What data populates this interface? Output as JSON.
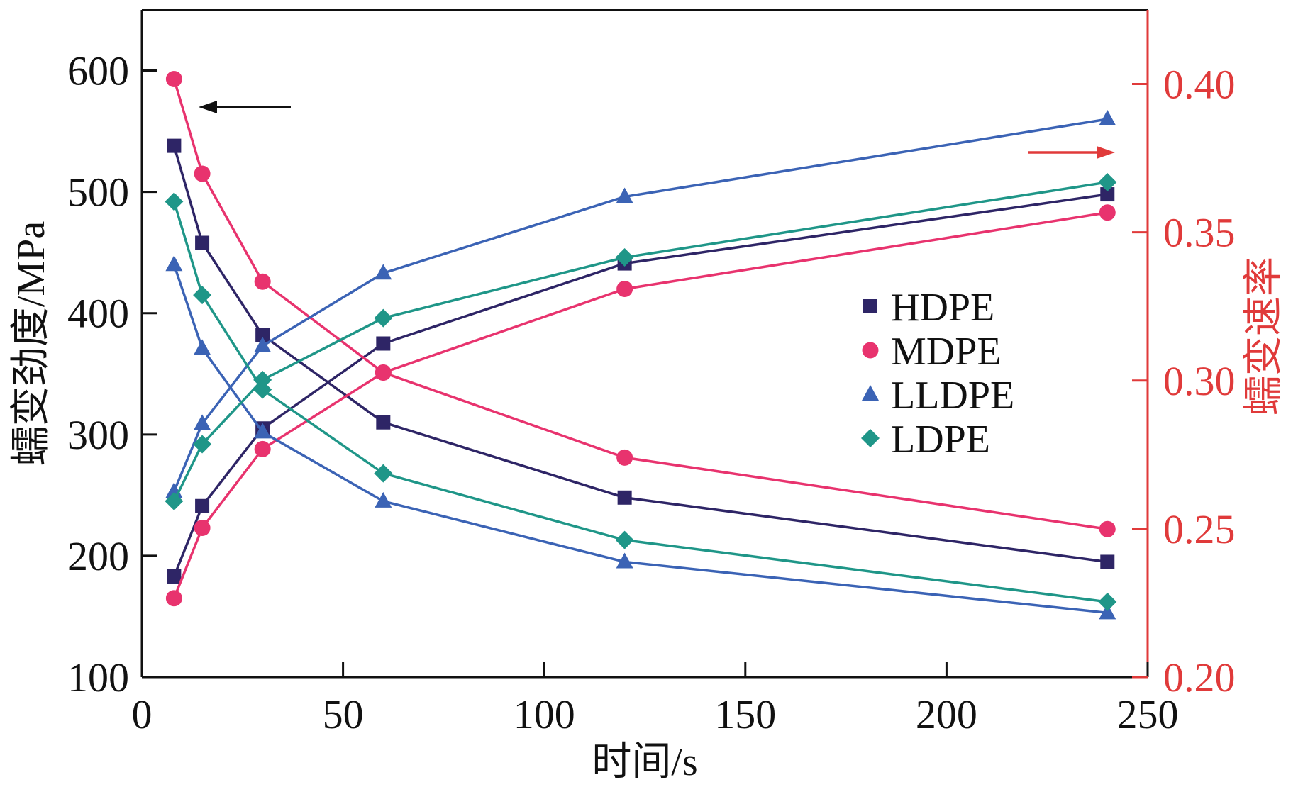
{
  "chart_data": {
    "type": "line",
    "title": "",
    "xlabel": "时间/s",
    "ylabel_left": "蠕变劲度/MPa",
    "ylabel_right": "蠕变速率",
    "xlim": [
      0,
      250
    ],
    "ylim_left": [
      100,
      650
    ],
    "ylim_right": [
      0.2,
      0.425
    ],
    "x_ticks": [
      0,
      50,
      100,
      150,
      200,
      250
    ],
    "y_left_ticks": [
      100,
      200,
      300,
      400,
      500,
      600
    ],
    "y_right_ticks": [
      "0.20",
      "0.25",
      "0.30",
      "0.35",
      "0.40"
    ],
    "y_right_tick_values": [
      0.2,
      0.25,
      0.3,
      0.35,
      0.4
    ],
    "x": [
      8,
      15,
      30,
      60,
      120,
      240
    ],
    "legend_position": "center-right",
    "series": [
      {
        "name": "HDPE",
        "marker": "square",
        "color": "#2e2566",
        "axis": "left",
        "role": "stiffness",
        "values": [
          538,
          458,
          382,
          310,
          248,
          195
        ]
      },
      {
        "name": "HDPE",
        "marker": "square",
        "color": "#2e2566",
        "axis": "left",
        "role": "rate",
        "values": [
          183,
          241,
          305,
          375,
          441,
          498
        ]
      },
      {
        "name": "MDPE",
        "marker": "circle",
        "color": "#e8336e",
        "axis": "left",
        "role": "stiffness",
        "values": [
          593,
          515,
          426,
          351,
          281,
          222
        ]
      },
      {
        "name": "MDPE",
        "marker": "circle",
        "color": "#e8336e",
        "axis": "left",
        "role": "rate",
        "values": [
          165,
          223,
          288,
          351,
          420,
          483
        ]
      },
      {
        "name": "LLDPE",
        "marker": "triangle",
        "color": "#3b63b5",
        "axis": "left",
        "role": "stiffness",
        "values": [
          440,
          371,
          302,
          245,
          195,
          153
        ]
      },
      {
        "name": "LLDPE",
        "marker": "triangle",
        "color": "#3b63b5",
        "axis": "left",
        "role": "rate",
        "values": [
          253,
          309,
          373,
          433,
          496,
          560
        ]
      },
      {
        "name": "LDPE",
        "marker": "diamond",
        "color": "#1f9688",
        "axis": "left",
        "role": "stiffness",
        "values": [
          492,
          415,
          337,
          268,
          213,
          162
        ]
      },
      {
        "name": "LDPE",
        "marker": "diamond",
        "color": "#1f9688",
        "axis": "left",
        "role": "rate",
        "values": [
          245,
          292,
          345,
          396,
          446,
          508
        ]
      }
    ],
    "legend": [
      {
        "label": "HDPE",
        "marker": "square",
        "color": "#2e2566"
      },
      {
        "label": "MDPE",
        "marker": "circle",
        "color": "#e8336e"
      },
      {
        "label": "LLDPE",
        "marker": "triangle",
        "color": "#3b63b5"
      },
      {
        "label": "LDPE",
        "marker": "diamond",
        "color": "#1f9688"
      }
    ],
    "annotations": [
      {
        "type": "arrow",
        "direction": "left",
        "meaning": "left axis",
        "color": "#111111"
      },
      {
        "type": "arrow",
        "direction": "right",
        "meaning": "right axis",
        "color": "#e03a3a"
      }
    ],
    "colors": {
      "left_axis": "#111111",
      "right_axis": "#e03a3a"
    }
  }
}
